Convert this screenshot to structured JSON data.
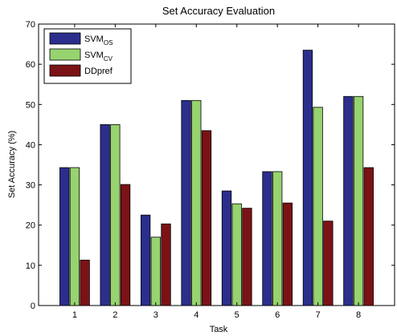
{
  "chart_data": {
    "type": "bar",
    "title": "Set Accuracy Evaluation",
    "xlabel": "Task",
    "ylabel": "Set Accuracy (%)",
    "categories": [
      "1",
      "2",
      "3",
      "4",
      "5",
      "6",
      "7",
      "8"
    ],
    "ylim": [
      0,
      70
    ],
    "yticks": [
      0,
      10,
      20,
      30,
      40,
      50,
      60,
      70
    ],
    "grid": false,
    "legend_position": "top-left",
    "series": [
      {
        "name": "SVM",
        "name_subscript": "OS",
        "color": "#2b2e8c",
        "values": [
          34.3,
          45.0,
          22.5,
          51.0,
          28.5,
          33.3,
          63.5,
          52.0
        ]
      },
      {
        "name": "SVM",
        "name_subscript": "CV",
        "color": "#97d36f",
        "values": [
          34.3,
          45.0,
          17.0,
          51.0,
          25.3,
          33.3,
          49.3,
          52.0
        ]
      },
      {
        "name": "DDpref",
        "name_subscript": "",
        "color": "#7b1216",
        "values": [
          11.3,
          30.1,
          20.3,
          43.5,
          24.2,
          25.5,
          21.0,
          34.3
        ]
      }
    ]
  }
}
